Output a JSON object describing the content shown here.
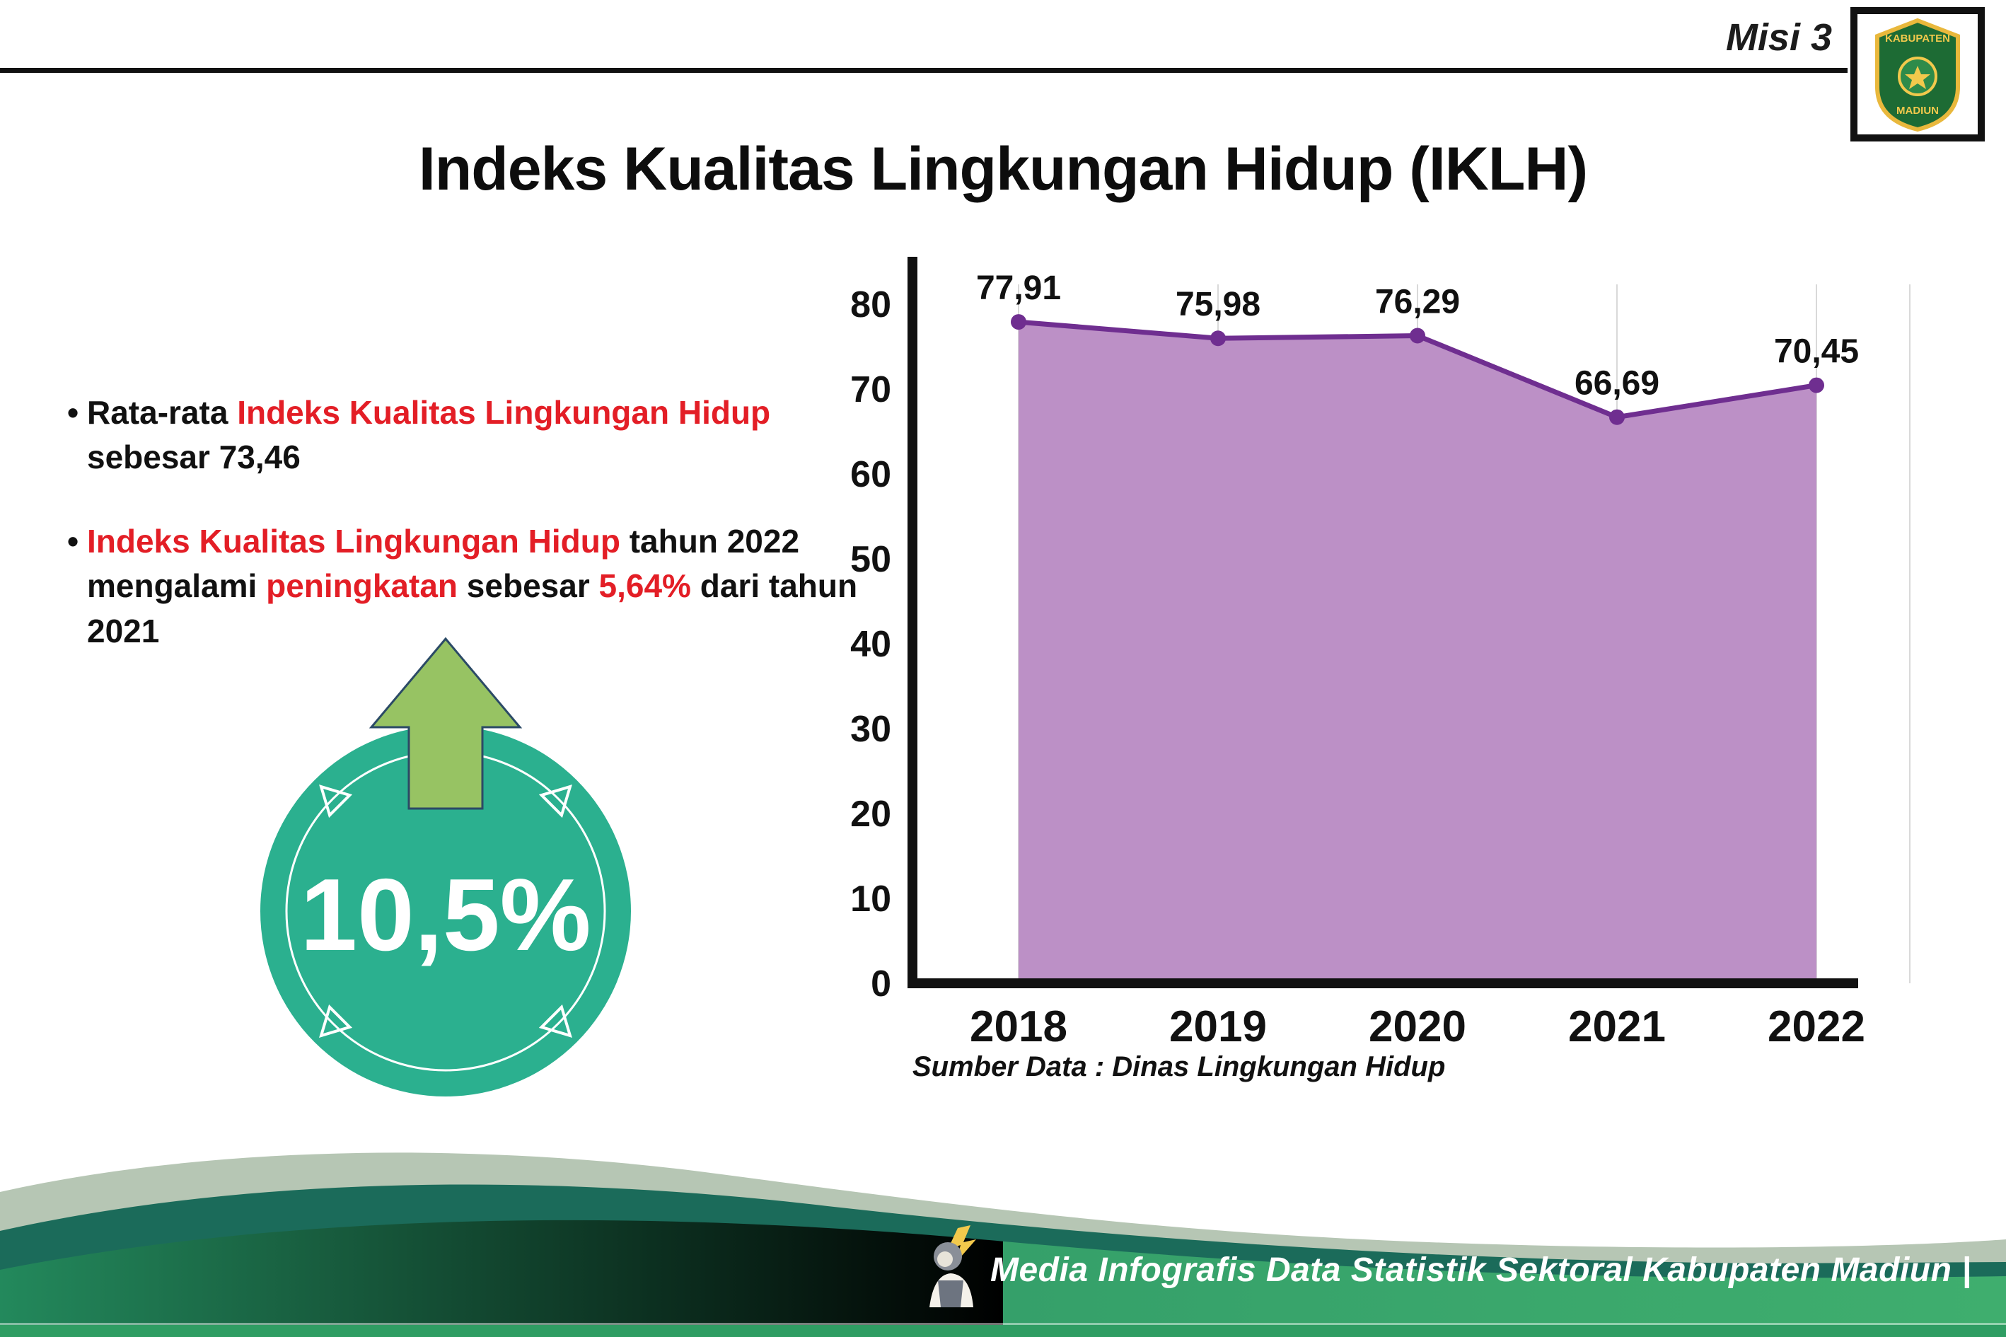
{
  "header": {
    "misi_label": "Misi 3",
    "title": "Indeks Kualitas Lingkungan Hidup (IKLH)",
    "logo": {
      "top_text": "KABUPATEN",
      "bottom_text": "MADIUN"
    }
  },
  "notes": {
    "b1": {
      "s1": "Rata-rata ",
      "s2": "Indeks Kualitas Lingkungan Hidup",
      "s3": " sebesar 73,46"
    },
    "b2": {
      "s1": "Indeks Kualitas Lingkungan Hidup",
      "s2": " tahun 2022 mengalami ",
      "s3": "peningkatan",
      "s4": " sebesar ",
      "s5": "5,64%",
      "s6": " dari tahun 2021"
    }
  },
  "badge": {
    "value": "10,5%",
    "circle_color": "#2bb08f",
    "arrow_color": "#97c363",
    "arrow_outline": "#2b4a66"
  },
  "chart_data": {
    "type": "area",
    "title": "Indeks Kualitas Lingkungan Hidup (IKLH)",
    "categories": [
      "2018",
      "2019",
      "2020",
      "2021",
      "2022"
    ],
    "values": [
      77.91,
      75.98,
      76.29,
      66.69,
      70.45
    ],
    "value_labels": [
      "77,91",
      "75,98",
      "76,29",
      "66,69",
      "70,45"
    ],
    "xlabel": "",
    "ylabel": "",
    "ylim": [
      0,
      80
    ],
    "yticks": [
      0,
      10,
      20,
      30,
      40,
      50,
      60,
      70,
      80
    ],
    "grid": true,
    "legend": false,
    "source": "Sumber Data : Dinas Lingkungan Hidup",
    "area_color": "#bc90c6",
    "line_color": "#6f2e90",
    "grid_color": "#d9d9d9",
    "axis_color": "#111111"
  },
  "footer": {
    "text": "Media Infografis Data Statistik Sektoral Kabupaten Madiun |"
  }
}
